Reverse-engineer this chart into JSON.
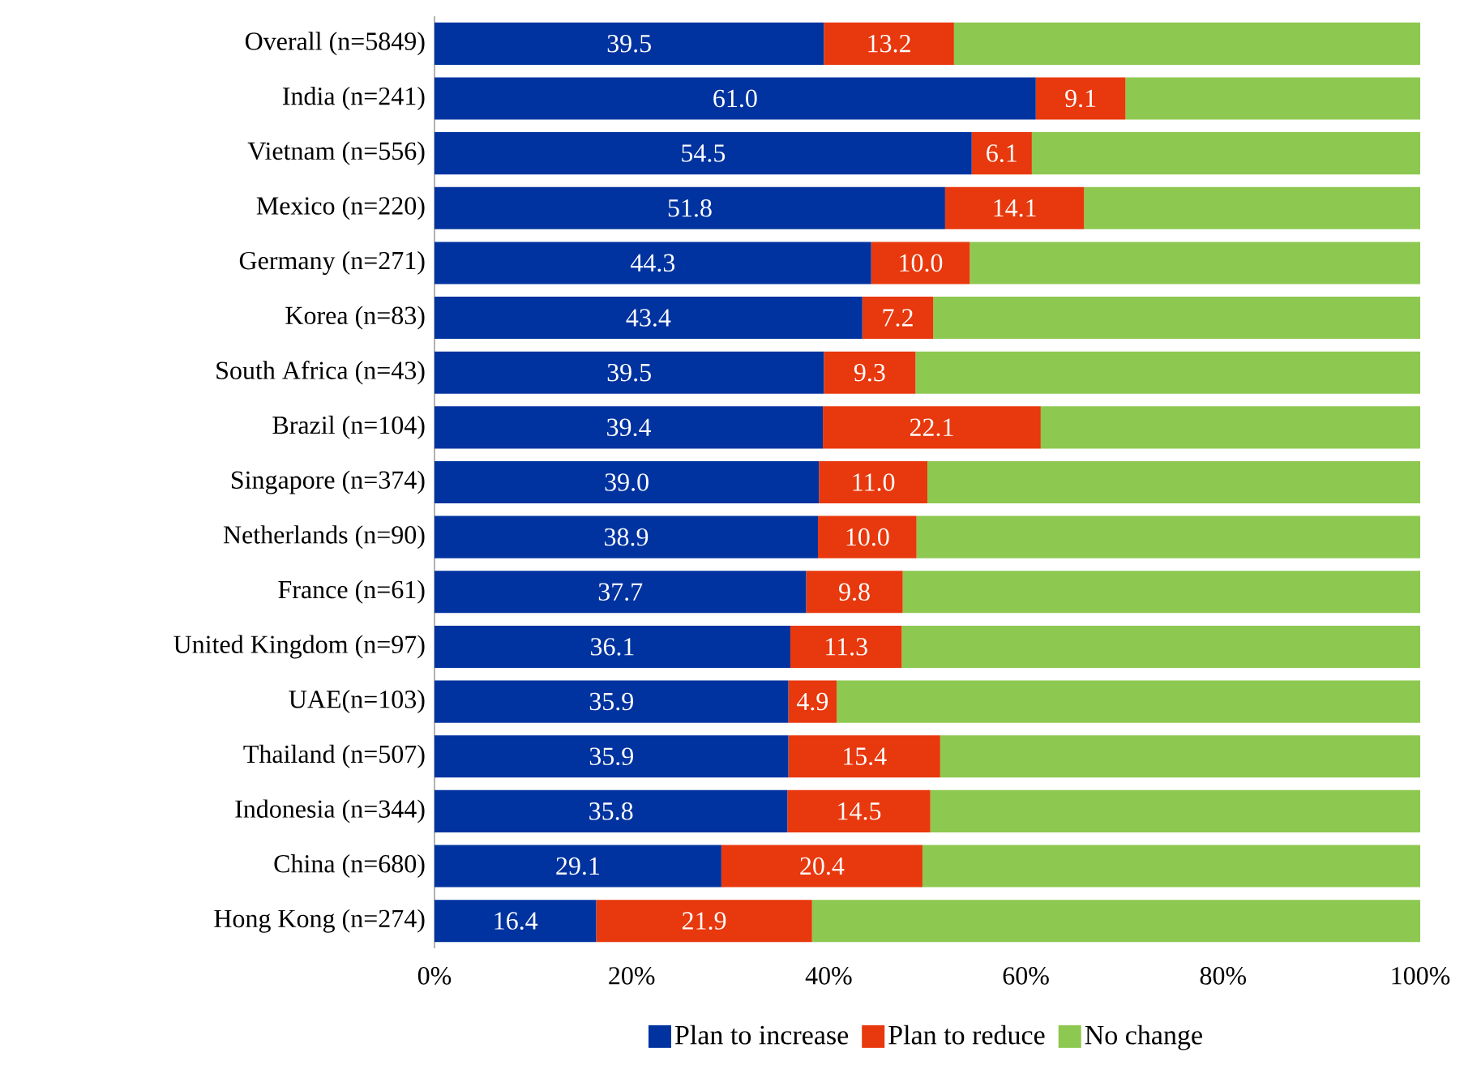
{
  "chart_data": {
    "type": "bar",
    "orientation": "horizontal",
    "stacked": true,
    "categories": [
      "Overall (n=5849)",
      "India (n=241)",
      "Vietnam (n=556)",
      "Mexico (n=220)",
      "Germany (n=271)",
      "Korea (n=83)",
      "South Africa (n=43)",
      "Brazil (n=104)",
      "Singapore (n=374)",
      "Netherlands (n=90)",
      "France (n=61)",
      "United Kingdom (n=97)",
      "UAE(n=103)",
      "Thailand (n=507)",
      "Indonesia (n=344)",
      "China (n=680)",
      "Hong Kong (n=274)"
    ],
    "series": [
      {
        "name": "Plan to increase",
        "color": "#0033a0",
        "values": [
          39.5,
          61.0,
          54.5,
          51.8,
          44.3,
          43.4,
          39.5,
          39.4,
          39.0,
          38.9,
          37.7,
          36.1,
          35.9,
          35.9,
          35.8,
          29.1,
          16.4
        ],
        "value_labels": [
          "39.5",
          "61.0",
          "54.5",
          "51.8",
          "44.3",
          "43.4",
          "39.5",
          "39.4",
          "39.0",
          "38.9",
          "37.7",
          "36.1",
          "35.9",
          "35.9",
          "35.8",
          "29.1",
          "16.4"
        ]
      },
      {
        "name": "Plan to reduce",
        "color": "#e8380d",
        "values": [
          13.2,
          9.1,
          6.1,
          14.1,
          10.0,
          7.2,
          9.3,
          22.1,
          11.0,
          10.0,
          9.8,
          11.3,
          4.9,
          15.4,
          14.5,
          20.4,
          21.9
        ],
        "value_labels": [
          "13.2",
          "9.1",
          "6.1",
          "14.1",
          "10.0",
          "7.2",
          "9.3",
          "22.1",
          "11.0",
          "10.0",
          "9.8",
          "11.3",
          "4.9",
          "15.4",
          "14.5",
          "20.4",
          "21.9"
        ]
      },
      {
        "name": "No change",
        "color": "#8dc850",
        "values": [
          47.3,
          29.9,
          39.4,
          34.1,
          45.7,
          49.4,
          51.2,
          38.5,
          50.0,
          51.1,
          52.5,
          52.6,
          59.2,
          48.7,
          49.7,
          50.5,
          61.7
        ]
      }
    ],
    "xlim": [
      0,
      100
    ],
    "xticks": [
      {
        "value": 0,
        "label": "0%"
      },
      {
        "value": 20,
        "label": "20%"
      },
      {
        "value": 40,
        "label": "40%"
      },
      {
        "value": 60,
        "label": "60%"
      },
      {
        "value": 80,
        "label": "80%"
      },
      {
        "value": 100,
        "label": "100%"
      }
    ],
    "legend": "bottom"
  }
}
